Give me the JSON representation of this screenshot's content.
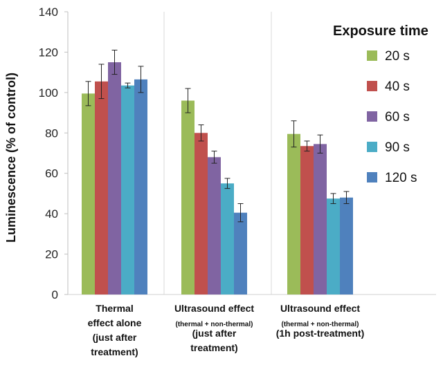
{
  "chart_data": {
    "type": "bar",
    "ylabel": "Luminescence (% of control)",
    "ylim": [
      0,
      140
    ],
    "yticks": [
      0,
      20,
      40,
      60,
      80,
      100,
      120,
      140
    ],
    "grid": false,
    "legend": {
      "title": "Exposure time",
      "placement": "right"
    },
    "categories": [
      {
        "lines": [
          "Thermal",
          "effect alone",
          "(just after",
          "treatment)"
        ],
        "small": [
          false,
          false,
          false,
          false
        ]
      },
      {
        "lines": [
          "Ultrasound effect",
          "(thermal + non-thermal)",
          "(just after",
          "treatment)"
        ],
        "small": [
          false,
          true,
          false,
          false
        ]
      },
      {
        "lines": [
          "Ultrasound effect",
          "(thermal + non-thermal)",
          "(1h post-treatment)"
        ],
        "small": [
          false,
          true,
          false
        ]
      }
    ],
    "series": [
      {
        "name": "20 s",
        "color": "#9bbb59",
        "values": [
          99.5,
          96,
          79.5
        ],
        "errors": [
          6,
          6,
          6.5
        ]
      },
      {
        "name": "40 s",
        "color": "#c0504d",
        "values": [
          105.5,
          80,
          73.5
        ],
        "errors": [
          8.5,
          4,
          2.5
        ]
      },
      {
        "name": "60 s",
        "color": "#8064a2",
        "values": [
          115,
          68,
          74.5
        ],
        "errors": [
          6,
          3,
          4.5
        ]
      },
      {
        "name": "90 s",
        "color": "#4bacc6",
        "values": [
          103.5,
          55,
          47.5
        ],
        "errors": [
          1.2,
          2.5,
          2.5
        ]
      },
      {
        "name": "120 s",
        "color": "#4f81bd",
        "values": [
          106.5,
          40.5,
          48
        ],
        "errors": [
          6.5,
          4.5,
          3
        ]
      }
    ],
    "group_series": [
      [
        0,
        1,
        2,
        3,
        4
      ],
      [
        0,
        1,
        2,
        3,
        4
      ],
      [
        0,
        1,
        2,
        3,
        4
      ]
    ]
  }
}
